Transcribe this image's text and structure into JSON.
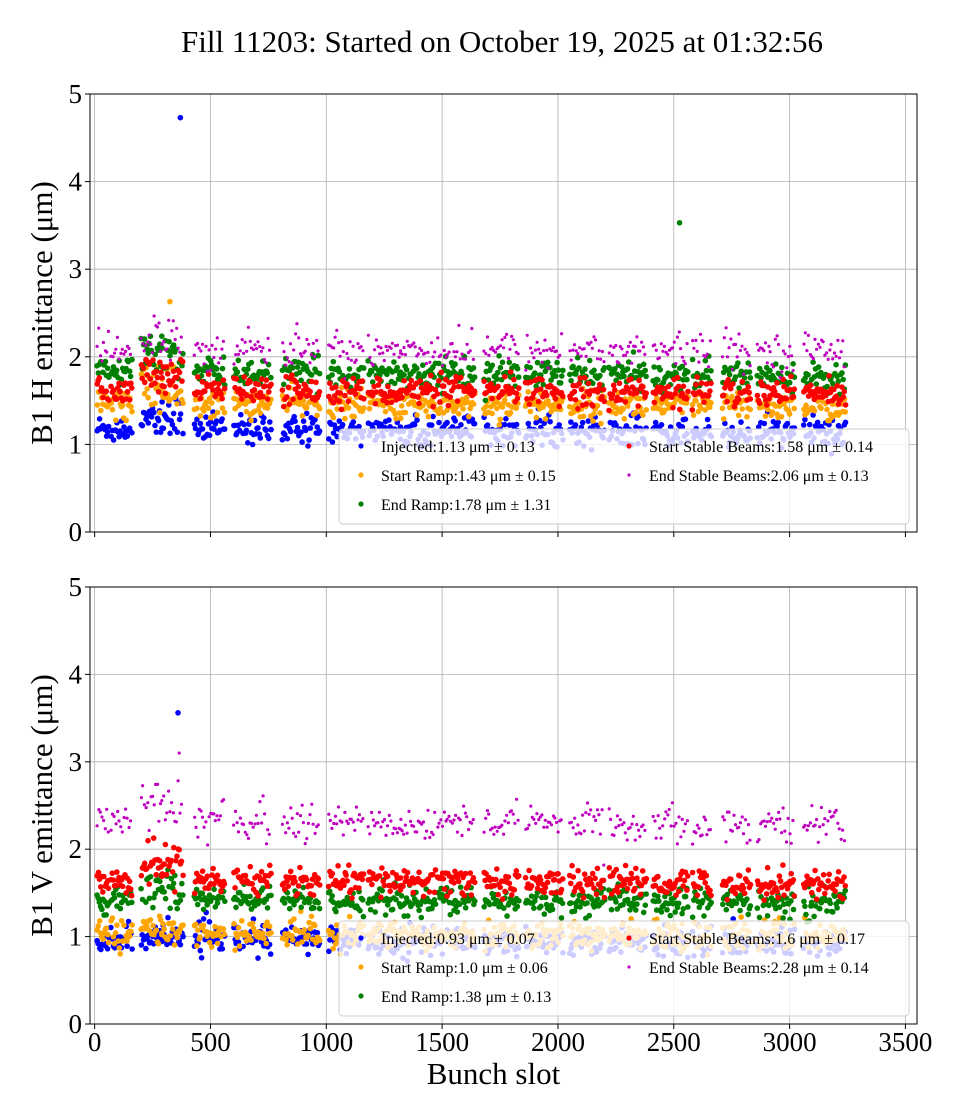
{
  "page_title": "Fill 11203: Started on October 19, 2025 at 01:32:56",
  "chart_data": [
    {
      "type": "scatter",
      "ylabel": "B1 H emittance (μm)",
      "xlabel": "",
      "xlim": [
        -20,
        3550
      ],
      "ylim": [
        0,
        5
      ],
      "xticks": [
        0,
        500,
        1000,
        1500,
        2000,
        2500,
        3000,
        3500
      ],
      "yticks": [
        0,
        1,
        2,
        3,
        4,
        5
      ],
      "show_xtick_labels": false,
      "grid": true,
      "legend_position": "lower-right",
      "series": [
        {
          "legend": "Injected:1.13 μm ± 0.13",
          "color": "#0000ff",
          "mean": 1.13,
          "std": 0.13,
          "marker": "large",
          "outliers": [
            [
              370,
              4.73
            ]
          ],
          "hump": 0.25
        },
        {
          "legend": "Start Ramp:1.43 μm ± 0.15",
          "color": "#ffa500",
          "mean": 1.43,
          "std": 0.15,
          "marker": "large",
          "outliers": [
            [
              325,
              2.63
            ]
          ],
          "hump": 0.35
        },
        {
          "legend": "End Ramp:1.78 μm ± 1.31",
          "color": "#008000",
          "mean": 1.78,
          "std": 1.31,
          "marker": "large",
          "outliers": [
            [
              2525,
              3.53
            ]
          ],
          "hump": 0.35
        },
        {
          "legend": "Start Stable Beams:1.58 μm ± 0.14",
          "color": "#ff0000",
          "mean": 1.58,
          "std": 0.14,
          "marker": "large",
          "outliers": [],
          "hump": 0.3
        },
        {
          "legend": "End Stable Beams:2.06 μm ± 0.13",
          "color": "#bf00bf",
          "mean": 2.06,
          "std": 0.13,
          "marker": "small",
          "outliers": [],
          "hump": 0.3
        }
      ]
    },
    {
      "type": "scatter",
      "ylabel": "B1 V emittance (μm)",
      "xlabel": "Bunch slot",
      "xlim": [
        -20,
        3550
      ],
      "ylim": [
        0,
        5
      ],
      "xticks": [
        0,
        500,
        1000,
        1500,
        2000,
        2500,
        3000,
        3500
      ],
      "yticks": [
        0,
        1,
        2,
        3,
        4,
        5
      ],
      "show_xtick_labels": true,
      "grid": true,
      "legend_position": "lower-right",
      "series": [
        {
          "legend": "Injected:0.93 μm ± 0.07",
          "color": "#0000ff",
          "mean": 0.93,
          "std": 0.07,
          "marker": "large",
          "outliers": [
            [
              360,
              3.56
            ]
          ],
          "hump": 0.05
        },
        {
          "legend": "Start Ramp:1.0 μm ± 0.06",
          "color": "#ffa500",
          "mean": 1.0,
          "std": 0.06,
          "marker": "large",
          "outliers": [],
          "hump": 0.05
        },
        {
          "legend": "End Ramp:1.38 μm ± 0.13",
          "color": "#008000",
          "mean": 1.38,
          "std": 0.13,
          "marker": "large",
          "outliers": [],
          "hump": 0.3
        },
        {
          "legend": "Start Stable Beams:1.6 μm ± 0.17",
          "color": "#ff0000",
          "mean": 1.6,
          "std": 0.17,
          "marker": "large",
          "outliers": [],
          "hump": 0.4
        },
        {
          "legend": "End Stable Beams:2.28 μm ± 0.14",
          "color": "#bf00bf",
          "mean": 2.28,
          "std": 0.14,
          "marker": "small",
          "outliers": [
            [
              365,
              3.1
            ]
          ],
          "hump": 0.4
        }
      ]
    }
  ],
  "bunch_trains": [
    [
      10,
      60
    ],
    [
      70,
      160
    ],
    [
      200,
      290
    ],
    [
      290,
      380
    ],
    [
      430,
      560
    ],
    [
      600,
      760
    ],
    [
      810,
      970
    ],
    [
      1010,
      1160
    ],
    [
      1180,
      1320
    ],
    [
      1320,
      1470
    ],
    [
      1480,
      1640
    ],
    [
      1680,
      1830
    ],
    [
      1860,
      2020
    ],
    [
      2050,
      2200
    ],
    [
      2220,
      2380
    ],
    [
      2410,
      2560
    ],
    [
      2580,
      2660
    ],
    [
      2710,
      2830
    ],
    [
      2860,
      3020
    ],
    [
      3060,
      3240
    ]
  ]
}
